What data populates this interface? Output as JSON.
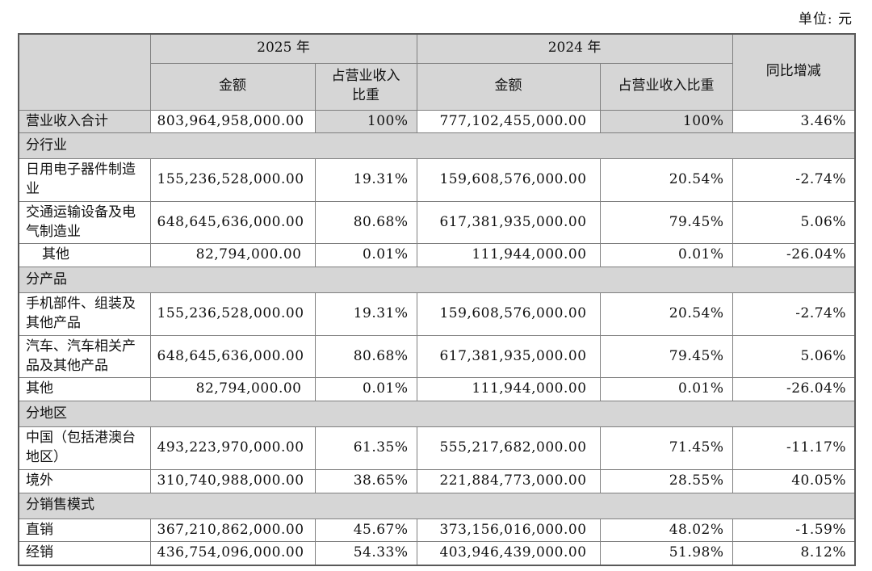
{
  "unit_label": "单位: 元",
  "table": {
    "header": {
      "year_2025": "2025 年",
      "year_2024": "2024 年",
      "amount": "金额",
      "proportion": "占营业收入比重",
      "yoy": "同比增减"
    },
    "rows": [
      {
        "type": "data",
        "highlight": true,
        "label": "营业收入合计",
        "amount_2025": "803,964,958,000.00",
        "proportion_2025": "100%",
        "amount_2024": "777,102,455,000.00",
        "proportion_2024": "100%",
        "yoy": "3.46%"
      },
      {
        "type": "section",
        "label": "分行业"
      },
      {
        "type": "data",
        "label": "日用电子器件制造业",
        "amount_2025": "155,236,528,000.00",
        "proportion_2025": "19.31%",
        "amount_2024": "159,608,576,000.00",
        "proportion_2024": "20.54%",
        "yoy": "-2.74%"
      },
      {
        "type": "data",
        "label": "交通运输设备及电气制造业",
        "amount_2025": "648,645,636,000.00",
        "proportion_2025": "80.68%",
        "amount_2024": "617,381,935,000.00",
        "proportion_2024": "79.45%",
        "yoy": "5.06%"
      },
      {
        "type": "data",
        "indent": true,
        "label": "其他",
        "amount_2025": "82,794,000.00",
        "proportion_2025": "0.01%",
        "amount_2024": "111,944,000.00",
        "proportion_2024": "0.01%",
        "yoy": "-26.04%"
      },
      {
        "type": "section",
        "label": "分产品"
      },
      {
        "type": "data",
        "label": "手机部件、组装及其他产品",
        "amount_2025": "155,236,528,000.00",
        "proportion_2025": "19.31%",
        "amount_2024": "159,608,576,000.00",
        "proportion_2024": "20.54%",
        "yoy": "-2.74%"
      },
      {
        "type": "data",
        "label": "汽车、汽车相关产品及其他产品",
        "amount_2025": "648,645,636,000.00",
        "proportion_2025": "80.68%",
        "amount_2024": "617,381,935,000.00",
        "proportion_2024": "79.45%",
        "yoy": "5.06%"
      },
      {
        "type": "data",
        "label": "其他",
        "amount_2025": "82,794,000.00",
        "proportion_2025": "0.01%",
        "amount_2024": "111,944,000.00",
        "proportion_2024": "0.01%",
        "yoy": "-26.04%"
      },
      {
        "type": "section",
        "label": "分地区"
      },
      {
        "type": "data",
        "label": "中国（包括港澳台地区）",
        "amount_2025": "493,223,970,000.00",
        "proportion_2025": "61.35%",
        "amount_2024": "555,217,682,000.00",
        "proportion_2024": "71.45%",
        "yoy": "-11.17%"
      },
      {
        "type": "data",
        "label": "境外",
        "amount_2025": "310,740,988,000.00",
        "proportion_2025": "38.65%",
        "amount_2024": "221,884,773,000.00",
        "proportion_2024": "28.55%",
        "yoy": "40.05%"
      },
      {
        "type": "section",
        "label": "分销售模式"
      },
      {
        "type": "data",
        "label": "直销",
        "amount_2025": "367,210,862,000.00",
        "proportion_2025": "45.67%",
        "amount_2024": "373,156,016,000.00",
        "proportion_2024": "48.02%",
        "yoy": "-1.59%"
      },
      {
        "type": "data",
        "label": "经销",
        "amount_2025": "436,754,096,000.00",
        "proportion_2025": "54.33%",
        "amount_2024": "403,946,439,000.00",
        "proportion_2024": "51.98%",
        "yoy": "8.12%"
      }
    ]
  }
}
